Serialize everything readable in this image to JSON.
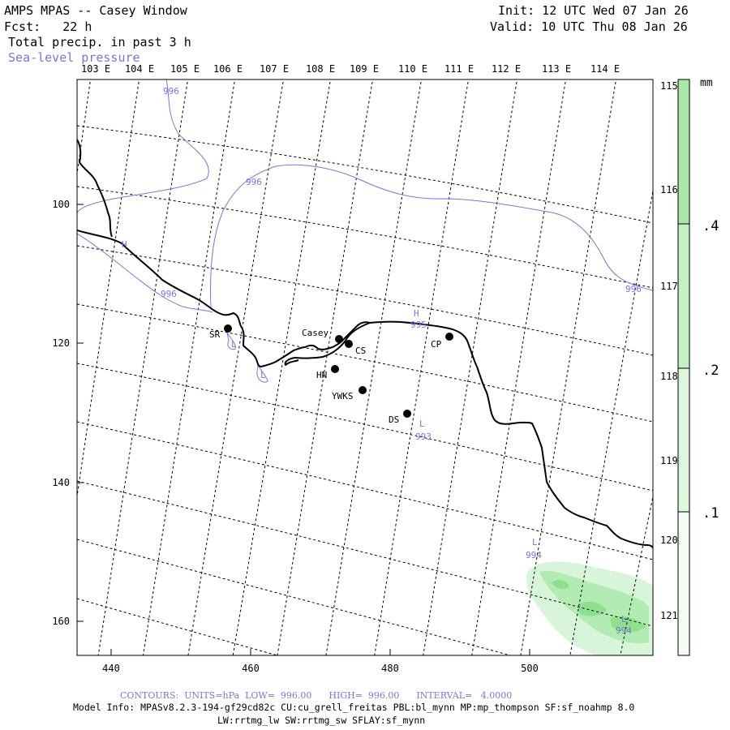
{
  "header": {
    "title": "AMPS MPAS -- Casey Window",
    "forecast_label": "Fcst:   22 h",
    "init": "Init: 12 UTC Wed 07 Jan 26",
    "valid": "Valid: 10 UTC Thu 08 Jan 26",
    "field": "Total precip. in past 3 h",
    "overlay": "Sea-level pressure"
  },
  "colors": {
    "coast": "#000000",
    "grid": "#000000",
    "pressure": "#7777dd",
    "precip_light": "#d9f5d9",
    "precip_mid": "#b3ecb3",
    "precip_dark": "#8ee08e"
  },
  "axes": {
    "top_lon": [
      "103 E",
      "104 E",
      "105 E",
      "106 E",
      "107 E",
      "108 E",
      "109 E",
      "110 E",
      "111 E",
      "112 E",
      "113 E",
      "114 E"
    ],
    "right_lon": [
      "115 E",
      "116 E",
      "117 E",
      "118 E",
      "119 E",
      "120 E",
      "121 E"
    ],
    "bottom_x": [
      "440",
      "460",
      "480",
      "500"
    ],
    "left_y": [
      "100",
      "120",
      "140",
      "160"
    ]
  },
  "colorbar": {
    "unit": "mm",
    "levels": [
      ".4",
      ".2",
      ".1"
    ]
  },
  "stations": [
    {
      "name": "SR"
    },
    {
      "name": "Casey"
    },
    {
      "name": "CS"
    },
    {
      "name": "CP"
    },
    {
      "name": "HN"
    },
    {
      "name": "YWKS"
    },
    {
      "name": "DS"
    }
  ],
  "pressure_labels": [
    {
      "text": "996"
    },
    {
      "text": "996"
    },
    {
      "text": "996"
    },
    {
      "text": "996"
    },
    {
      "text": "H"
    },
    {
      "text": "H"
    },
    {
      "text": "995"
    },
    {
      "text": "L"
    },
    {
      "text": "993"
    },
    {
      "text": "L"
    },
    {
      "text": "994"
    },
    {
      "text": "L"
    },
    {
      "text": "994"
    },
    {
      "text": "L"
    },
    {
      "text": "L"
    }
  ],
  "footer": {
    "contours": "CONTOURS:  UNITS=hPa  LOW=  996.00      HIGH=  996.00      INTERVAL=   4.0000",
    "model_info": "Model Info: MPASv8.2.3-194-gf29cd82c CU:cu_grell_freitas PBL:bl_mynn MP:mp_thompson SF:sf_noahmp 8.0",
    "model_info2": "LW:rrtmg_lw SW:rrtmg_sw SFLAY:sf_mynn"
  }
}
